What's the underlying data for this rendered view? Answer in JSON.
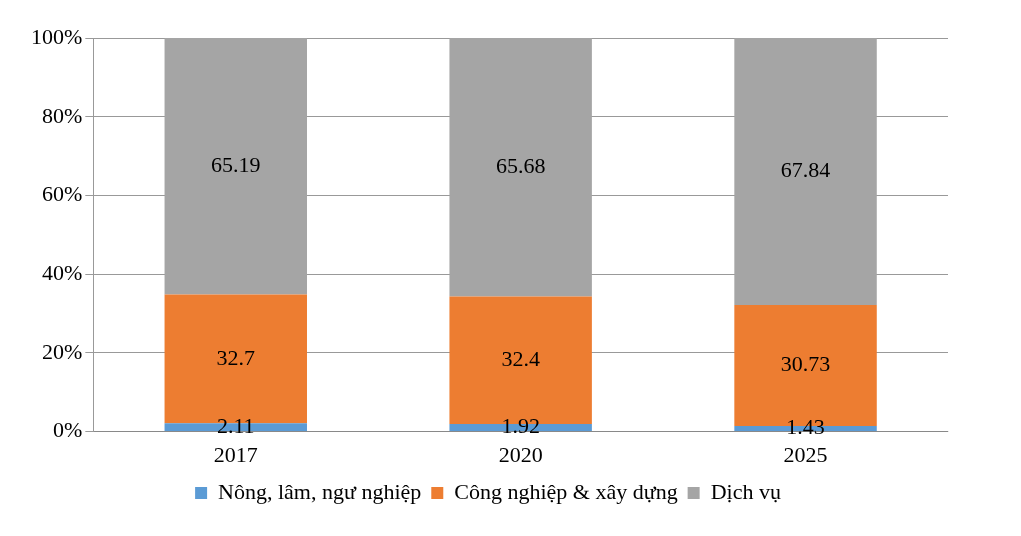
{
  "chart_data": {
    "type": "bar",
    "stacked": true,
    "categories": [
      "2017",
      "2020",
      "2025"
    ],
    "series": [
      {
        "name": "Nông, lâm, ngư nghiệp",
        "color": "#5b9bd5",
        "values": [
          2.11,
          1.92,
          1.43
        ]
      },
      {
        "name": "Công nghiệp & xây dựng",
        "color": "#ed7d31",
        "values": [
          32.7,
          32.4,
          30.73
        ]
      },
      {
        "name": "Dịch vụ",
        "color": "#a5a5a5",
        "values": [
          65.19,
          65.68,
          67.84
        ]
      }
    ],
    "ylim": [
      0,
      100
    ],
    "yticks": [
      {
        "value": 0,
        "label": "0%"
      },
      {
        "value": 20,
        "label": "20%"
      },
      {
        "value": 40,
        "label": "40%"
      },
      {
        "value": 60,
        "label": "60%"
      },
      {
        "value": 80,
        "label": "80%"
      },
      {
        "value": 100,
        "label": "100%"
      }
    ],
    "grid": "y",
    "legend": "bottom",
    "data_labels": true
  }
}
